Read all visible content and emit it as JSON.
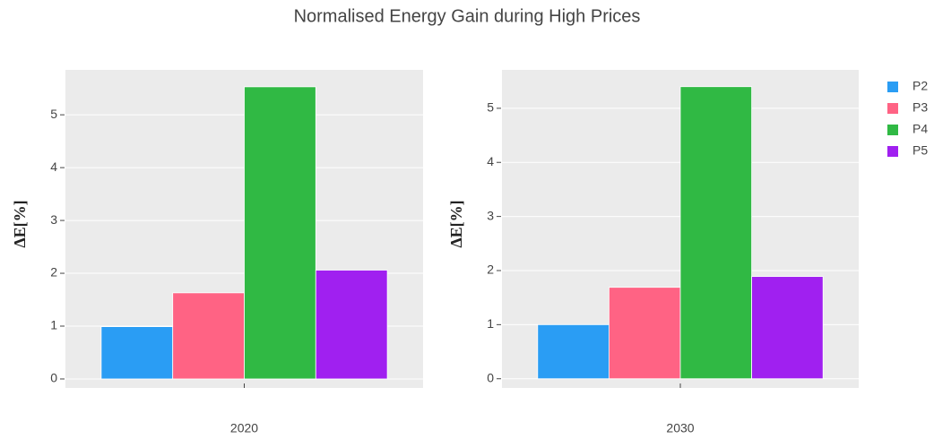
{
  "title": "Normalised Energy Gain during High Prices",
  "chart_data": [
    {
      "type": "bar",
      "y_label": "ΔE[%]",
      "categories": [
        "2020"
      ],
      "series": [
        {
          "name": "P2",
          "color": "#2a9df4",
          "values": [
            0.99
          ]
        },
        {
          "name": "P3",
          "color": "#ff6384",
          "values": [
            1.63
          ]
        },
        {
          "name": "P4",
          "color": "#30b944",
          "values": [
            5.53
          ]
        },
        {
          "name": "P5",
          "color": "#a020f0",
          "values": [
            2.06
          ]
        }
      ],
      "ylim": [
        -0.17,
        5.85
      ],
      "yticks": [
        0,
        1,
        2,
        3,
        4,
        5
      ],
      "grid": true
    },
    {
      "type": "bar",
      "y_label": "ΔE[%]",
      "categories": [
        "2030"
      ],
      "series": [
        {
          "name": "P2",
          "color": "#2a9df4",
          "values": [
            1.0
          ]
        },
        {
          "name": "P3",
          "color": "#ff6384",
          "values": [
            1.69
          ]
        },
        {
          "name": "P4",
          "color": "#30b944",
          "values": [
            5.4
          ]
        },
        {
          "name": "P5",
          "color": "#a020f0",
          "values": [
            1.89
          ]
        }
      ],
      "ylim": [
        -0.17,
        5.71
      ],
      "yticks": [
        0,
        1,
        2,
        3,
        4,
        5
      ],
      "grid": true
    }
  ]
}
